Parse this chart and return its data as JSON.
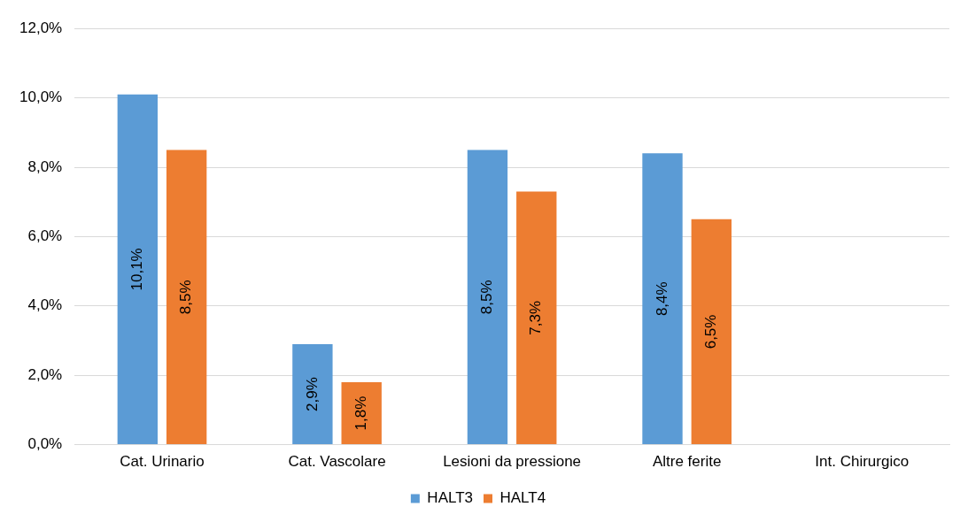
{
  "chart_data": {
    "type": "bar",
    "categories": [
      "Cat. Urinario",
      "Cat. Vascolare",
      "Lesioni da pressione",
      "Altre ferite",
      "Int. Chirurgico"
    ],
    "series": [
      {
        "name": "HALT3",
        "color": "#5b9bd5",
        "values": [
          10.1,
          2.9,
          8.5,
          8.4,
          null
        ],
        "value_labels": [
          "10,1%",
          "2,9%",
          "8,5%",
          "8,4%",
          null
        ]
      },
      {
        "name": "HALT4",
        "color": "#ed7d31",
        "values": [
          8.5,
          1.8,
          7.3,
          6.5,
          null
        ],
        "value_labels": [
          "8,5%",
          "1,8%",
          "7,3%",
          "6,5%",
          null
        ]
      }
    ],
    "ylim": [
      0,
      12
    ],
    "yticks": [
      {
        "value": 0,
        "label": "0,0%"
      },
      {
        "value": 2,
        "label": "2,0%"
      },
      {
        "value": 4,
        "label": "4,0%"
      },
      {
        "value": 6,
        "label": "6,0%"
      },
      {
        "value": 8,
        "label": "8,0%"
      },
      {
        "value": 10,
        "label": "10,0%"
      },
      {
        "value": 12,
        "label": "12,0%"
      }
    ],
    "grid": "y",
    "legend": "bottom"
  }
}
